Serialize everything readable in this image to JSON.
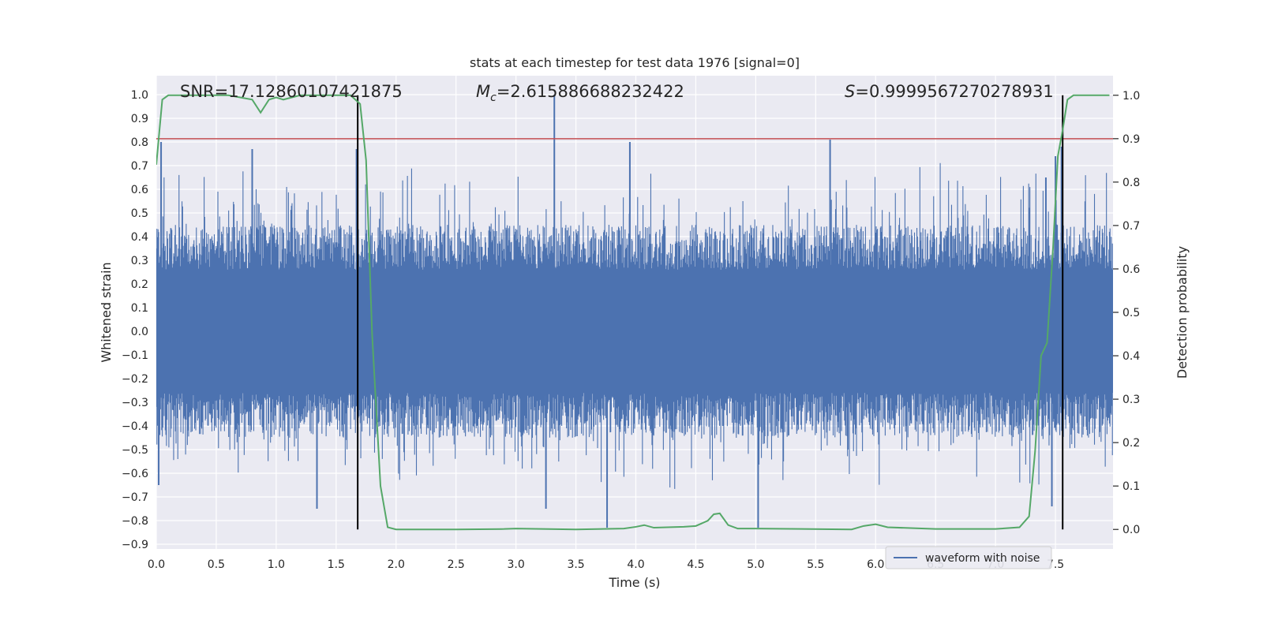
{
  "chart_data": {
    "type": "line",
    "title": "stats at each timestep for test data 1976 [signal=0]",
    "xlabel": "Time (s)",
    "ylabel": "Whitened strain",
    "y2label": "Detection probability",
    "xlim": [
      0.0,
      7.98
    ],
    "ylim": [
      -0.92,
      1.08
    ],
    "y2lim": [
      -0.045,
      1.045
    ],
    "xticks": [
      0.0,
      0.5,
      1.0,
      1.5,
      2.0,
      2.5,
      3.0,
      3.5,
      4.0,
      4.5,
      5.0,
      5.5,
      6.0,
      6.5,
      7.0,
      7.5
    ],
    "xtick_labels": [
      "0.0",
      "0.5",
      "1.0",
      "1.5",
      "2.0",
      "2.5",
      "3.0",
      "3.5",
      "4.0",
      "4.5",
      "5.0",
      "5.5",
      "6.0",
      "6.5",
      "7.0",
      "7.5"
    ],
    "yticks": [
      -0.9,
      -0.8,
      -0.7,
      -0.6,
      -0.5,
      -0.4,
      -0.3,
      -0.2,
      -0.1,
      0.0,
      0.1,
      0.2,
      0.3,
      0.4,
      0.5,
      0.6,
      0.7,
      0.8,
      0.9,
      1.0
    ],
    "ytick_labels": [
      "−0.9",
      "−0.8",
      "−0.7",
      "−0.6",
      "−0.5",
      "−0.4",
      "−0.3",
      "−0.2",
      "−0.1",
      "0.0",
      "0.1",
      "0.2",
      "0.3",
      "0.4",
      "0.5",
      "0.6",
      "0.7",
      "0.8",
      "0.9",
      "1.0"
    ],
    "y2ticks": [
      0.0,
      0.1,
      0.2,
      0.3,
      0.4,
      0.5,
      0.6,
      0.7,
      0.8,
      0.9,
      1.0
    ],
    "y2tick_labels": [
      "0.0",
      "0.1",
      "0.2",
      "0.3",
      "0.4",
      "0.5",
      "0.6",
      "0.7",
      "0.8",
      "0.9",
      "1.0"
    ],
    "grid": true,
    "legend": {
      "entries": [
        "waveform with noise"
      ],
      "placement": "lower-right"
    },
    "annotations": {
      "snr": "SNR=17.12860107421875",
      "mc_symbol": "M",
      "mc_sub": "c",
      "mc_value": "=2.615886688232422",
      "s_symbol": "S",
      "s_value": "=0.9999567270278931"
    },
    "threshold": {
      "y2": 0.9,
      "color": "#c44e52"
    },
    "vlines": [
      1.68,
      7.56
    ],
    "waveform": {
      "name": "waveform with noise",
      "color": "#4c72b0",
      "duration": 7.98,
      "samples": 1600,
      "envelope_max": 0.45,
      "envelope_min": -0.45,
      "spikes": [
        {
          "x": 0.04,
          "y": 0.8
        },
        {
          "x": 0.02,
          "y": -0.65
        },
        {
          "x": 0.8,
          "y": 0.77
        },
        {
          "x": 1.67,
          "y": 0.77
        },
        {
          "x": 3.32,
          "y": 1.0
        },
        {
          "x": 3.76,
          "y": -0.83
        },
        {
          "x": 3.95,
          "y": 0.8
        },
        {
          "x": 5.02,
          "y": -0.83
        },
        {
          "x": 5.62,
          "y": 0.81
        },
        {
          "x": 7.5,
          "y": 0.74
        },
        {
          "x": 7.47,
          "y": -0.74
        },
        {
          "x": 1.34,
          "y": -0.75
        },
        {
          "x": 3.25,
          "y": -0.75
        },
        {
          "x": 7.42,
          "y": 0.65
        },
        {
          "x": 7.55,
          "y": 0.78
        }
      ]
    },
    "probability": {
      "color": "#55a868",
      "x": [
        0.0,
        0.05,
        0.1,
        0.2,
        0.4,
        0.6,
        0.8,
        0.87,
        0.94,
        1.0,
        1.06,
        1.2,
        1.5,
        1.62,
        1.7,
        1.75,
        1.8,
        1.87,
        1.93,
        2.0,
        2.5,
        2.9,
        3.0,
        3.5,
        3.9,
        4.0,
        4.07,
        4.15,
        4.4,
        4.5,
        4.6,
        4.65,
        4.7,
        4.77,
        4.85,
        5.0,
        5.8,
        5.9,
        6.0,
        6.1,
        6.5,
        7.0,
        7.2,
        7.28,
        7.33,
        7.38,
        7.43,
        7.48,
        7.52,
        7.56,
        7.6,
        7.65,
        7.75,
        7.95
      ],
      "y": [
        0.84,
        0.99,
        1.0,
        1.0,
        1.0,
        1.0,
        0.99,
        0.96,
        0.99,
        0.995,
        0.99,
        1.0,
        1.0,
        1.0,
        0.98,
        0.85,
        0.45,
        0.1,
        0.005,
        0.0,
        0.0,
        0.001,
        0.002,
        0.0,
        0.002,
        0.006,
        0.01,
        0.004,
        0.006,
        0.008,
        0.02,
        0.035,
        0.037,
        0.01,
        0.002,
        0.002,
        0.0,
        0.008,
        0.012,
        0.005,
        0.001,
        0.001,
        0.005,
        0.03,
        0.18,
        0.4,
        0.43,
        0.65,
        0.86,
        0.92,
        0.99,
        1.0,
        1.0,
        1.0
      ]
    },
    "colors": {
      "background": "#eaeaf2",
      "grid": "#ffffff",
      "vline": "#000000"
    }
  }
}
